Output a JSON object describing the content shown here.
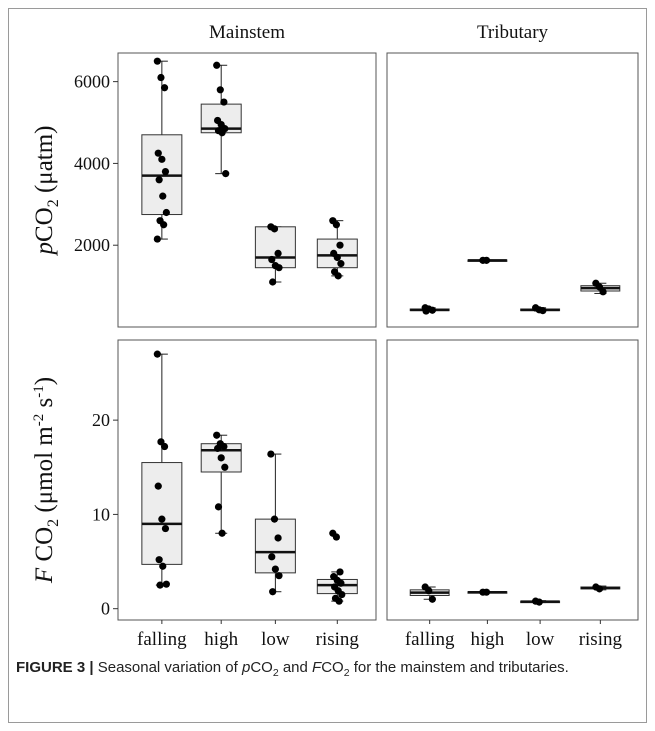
{
  "figure": {
    "label": "FIGURE 3 |",
    "caption_parts": [
      "Seasonal variation of ",
      "p",
      "CO",
      "2",
      " and ",
      "F",
      "CO",
      "2",
      " for the mainstem and tributaries."
    ]
  },
  "chart_data": [
    {
      "type": "box",
      "panel": "Mainstem",
      "row": "pCO2",
      "title": "Mainstem",
      "ylabel_parts": [
        "p",
        "CO",
        "2",
        " (μatm)"
      ],
      "ylim": [
        0,
        6700
      ],
      "yticks": [
        2000,
        4000,
        6000
      ],
      "categories": [
        "falling",
        "high",
        "low",
        "rising"
      ],
      "boxes": [
        {
          "category": "falling",
          "min": 2150,
          "q1": 2750,
          "median": 3700,
          "q3": 4700,
          "max": 6500,
          "points": [
            6500,
            6100,
            5850,
            4250,
            4100,
            3800,
            3600,
            3200,
            2800,
            2600,
            2500,
            2150
          ]
        },
        {
          "category": "high",
          "min": 3750,
          "q1": 4750,
          "median": 4850,
          "q3": 5450,
          "max": 6400,
          "points": [
            6400,
            5800,
            5500,
            5050,
            4950,
            4850,
            4800,
            4750,
            3750
          ]
        },
        {
          "category": "low",
          "min": 1100,
          "q1": 1450,
          "median": 1700,
          "q3": 2450,
          "max": 2450,
          "points": [
            2450,
            2400,
            1800,
            1650,
            1500,
            1450,
            1100
          ]
        },
        {
          "category": "rising",
          "min": 1250,
          "q1": 1450,
          "median": 1750,
          "q3": 2150,
          "max": 2600,
          "points": [
            2600,
            2500,
            2000,
            1800,
            1700,
            1550,
            1350,
            1250
          ]
        }
      ]
    },
    {
      "type": "box",
      "panel": "Tributary",
      "row": "pCO2",
      "title": "Tributary",
      "ylim": [
        0,
        6700
      ],
      "categories": [
        "falling",
        "high",
        "low",
        "rising"
      ],
      "boxes": [
        {
          "category": "falling",
          "min": 380,
          "q1": 400,
          "median": 420,
          "q3": 440,
          "max": 470,
          "points": [
            470,
            440,
            410,
            390
          ]
        },
        {
          "category": "high",
          "min": 1620,
          "q1": 1620,
          "median": 1630,
          "q3": 1640,
          "max": 1640,
          "points": [
            1630,
            1630
          ]
        },
        {
          "category": "low",
          "min": 390,
          "q1": 400,
          "median": 420,
          "q3": 440,
          "max": 470,
          "points": [
            470,
            420,
            400
          ]
        },
        {
          "category": "rising",
          "min": 820,
          "q1": 880,
          "median": 950,
          "q3": 1010,
          "max": 1070,
          "points": [
            1070,
            980,
            860
          ]
        }
      ]
    },
    {
      "type": "box",
      "panel": "Mainstem",
      "row": "FCO2",
      "ylabel_parts": [
        "F",
        " CO",
        "2",
        " (μmol m",
        "-2",
        " s",
        "-1",
        ")"
      ],
      "ylim": [
        -1.2,
        28.5
      ],
      "yticks": [
        0,
        10,
        20
      ],
      "categories": [
        "falling",
        "high",
        "low",
        "rising"
      ],
      "xtick_labels": [
        "falling",
        "high",
        "low",
        "rising"
      ],
      "boxes": [
        {
          "category": "falling",
          "min": 2.5,
          "q1": 4.7,
          "median": 9.0,
          "q3": 15.5,
          "max": 27.0,
          "points": [
            27.0,
            17.7,
            17.2,
            13.0,
            9.5,
            8.5,
            5.2,
            4.5,
            2.6,
            2.5
          ]
        },
        {
          "category": "high",
          "min": 8.0,
          "q1": 14.5,
          "median": 16.8,
          "q3": 17.5,
          "max": 18.4,
          "points": [
            18.4,
            17.5,
            17.2,
            17.0,
            16.0,
            15.0,
            10.8,
            8.0
          ]
        },
        {
          "category": "low",
          "min": 1.8,
          "q1": 3.8,
          "median": 6.0,
          "q3": 9.5,
          "max": 16.4,
          "points": [
            16.4,
            9.5,
            7.5,
            5.5,
            4.2,
            3.5,
            1.8
          ]
        },
        {
          "category": "rising",
          "min": 0.8,
          "q1": 1.6,
          "median": 2.5,
          "q3": 3.1,
          "max": 3.9,
          "points": [
            8.0,
            7.6,
            3.9,
            3.4,
            3.0,
            2.7,
            2.3,
            1.9,
            1.5,
            1.1,
            0.8
          ]
        }
      ]
    },
    {
      "type": "box",
      "panel": "Tributary",
      "row": "FCO2",
      "ylim": [
        -1.2,
        28.5
      ],
      "categories": [
        "falling",
        "high",
        "low",
        "rising"
      ],
      "xtick_labels": [
        "falling",
        "high",
        "low",
        "rising"
      ],
      "boxes": [
        {
          "category": "falling",
          "min": 1.0,
          "q1": 1.4,
          "median": 1.7,
          "q3": 2.0,
          "max": 2.3,
          "points": [
            2.3,
            1.9,
            1.0
          ]
        },
        {
          "category": "high",
          "min": 1.7,
          "q1": 1.7,
          "median": 1.75,
          "q3": 1.8,
          "max": 1.8,
          "points": [
            1.75,
            1.75
          ]
        },
        {
          "category": "low",
          "min": 0.65,
          "q1": 0.7,
          "median": 0.75,
          "q3": 0.8,
          "max": 0.85,
          "points": [
            0.8,
            0.7
          ]
        },
        {
          "category": "rising",
          "min": 2.0,
          "q1": 2.1,
          "median": 2.2,
          "q3": 2.3,
          "max": 2.4,
          "points": [
            2.3,
            2.1
          ]
        }
      ]
    }
  ]
}
